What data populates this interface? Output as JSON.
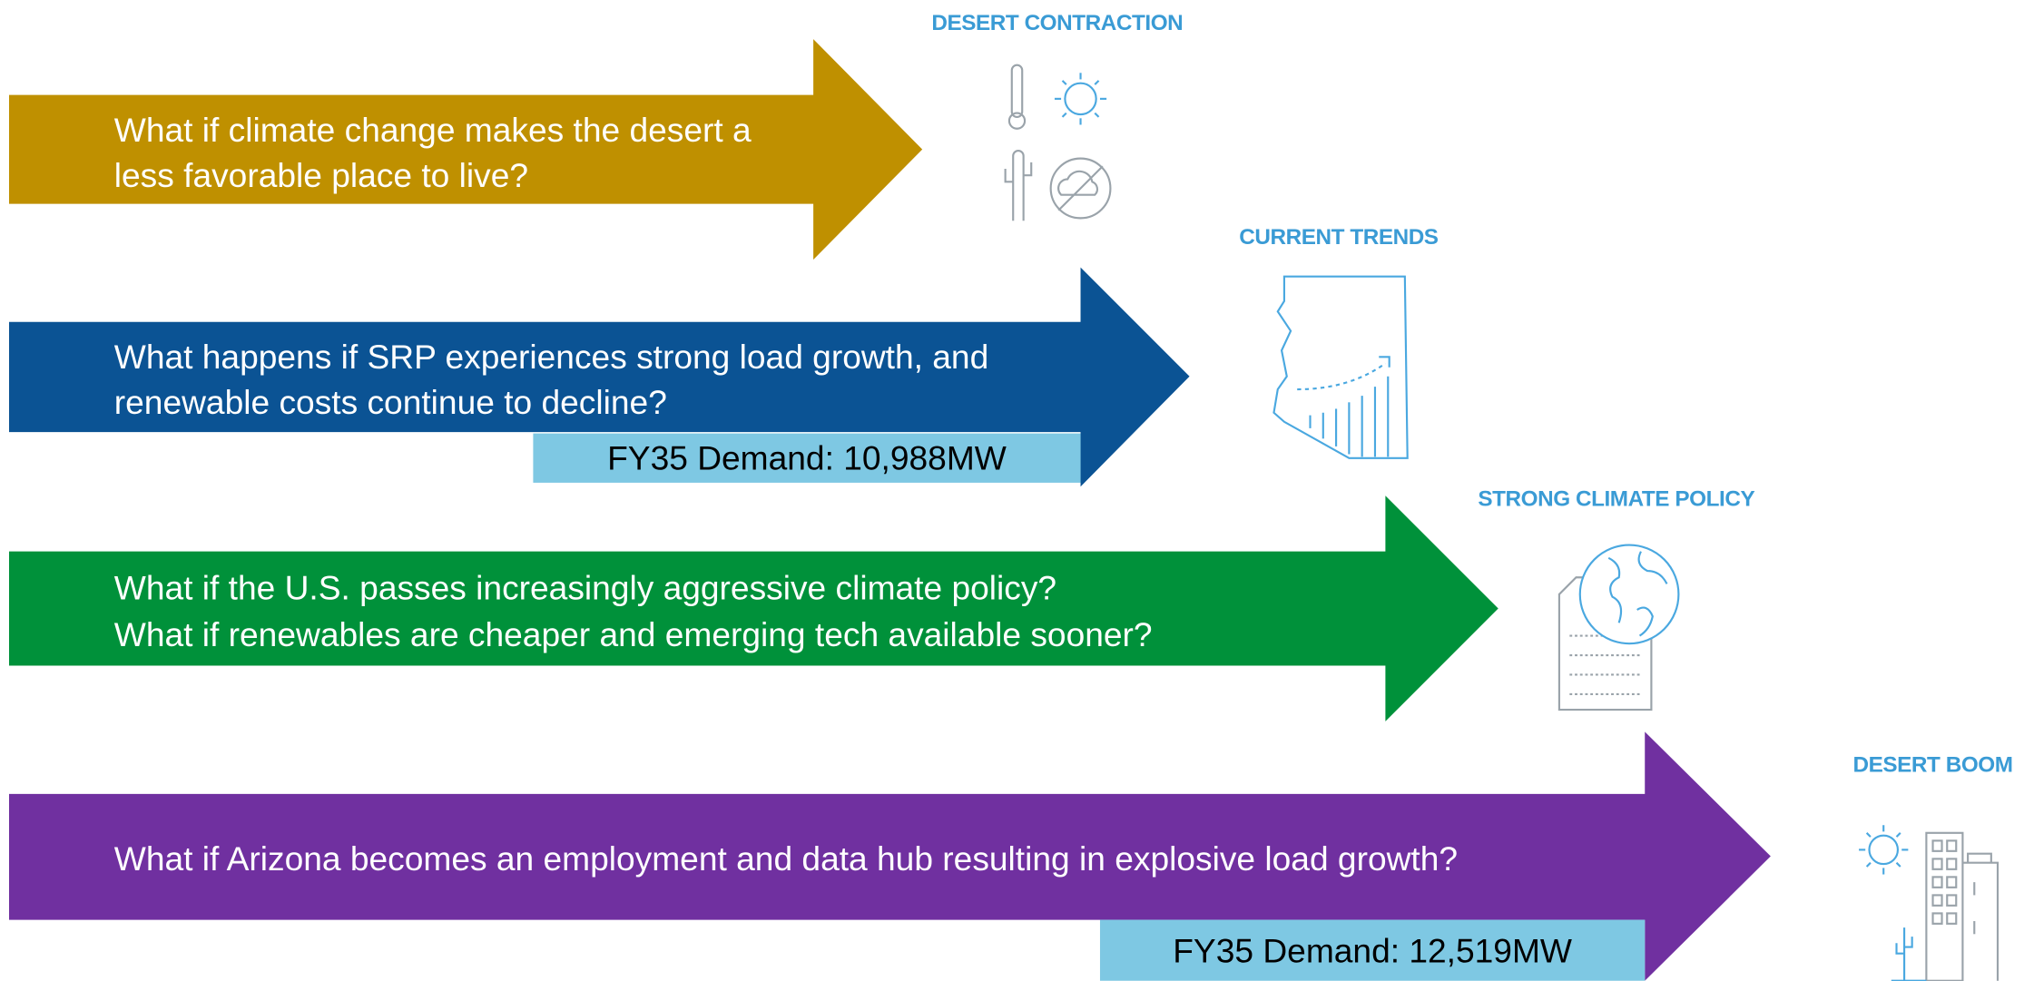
{
  "scenarios": [
    {
      "title": "DESERT CONTRACTION",
      "lines": [
        "What if climate change makes the desert a",
        "less favorable place to live?"
      ]
    },
    {
      "title": "CURRENT TRENDS",
      "lines": [
        "What happens if SRP experiences strong load growth, and",
        "renewable costs continue to decline?"
      ],
      "demand": "FY35 Demand: 10,988MW"
    },
    {
      "title": "STRONG CLIMATE POLICY",
      "lines": [
        "What if the U.S. passes increasingly aggressive climate policy?",
        "What if renewables are cheaper and emerging tech available sooner?"
      ]
    },
    {
      "title": "DESERT BOOM",
      "lines": [
        "What if Arizona becomes an employment and data hub resulting in explosive load growth?"
      ],
      "demand": "FY35 Demand: 12,519MW"
    }
  ]
}
